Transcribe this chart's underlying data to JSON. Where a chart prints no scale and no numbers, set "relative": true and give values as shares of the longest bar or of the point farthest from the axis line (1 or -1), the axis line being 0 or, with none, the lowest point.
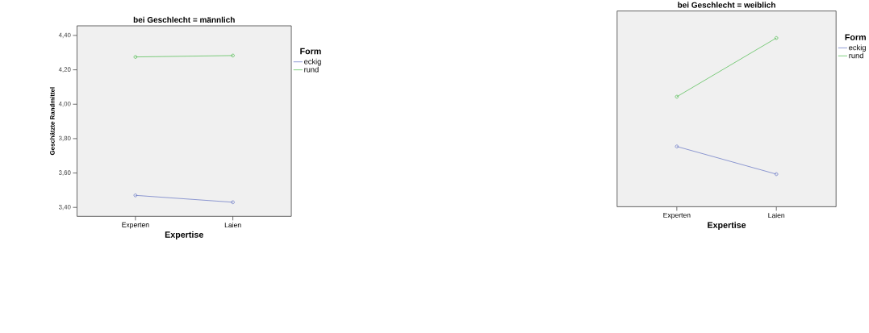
{
  "chart_data": [
    {
      "type": "line",
      "title": "bei Geschlecht = männlich",
      "xlabel": "Expertise",
      "ylabel": "Geschätzte Randmittel",
      "legend_title": "Form",
      "legend": "right",
      "marker": "circle",
      "line_style": "solid",
      "categories": [
        "Experten",
        "Laien"
      ],
      "series": [
        {
          "name": "eckig",
          "color": "#6474c4",
          "values": [
            3.47,
            3.43
          ]
        },
        {
          "name": "rund",
          "color": "#4cbc4c",
          "values": [
            4.275,
            4.283
          ]
        }
      ],
      "ylim": [
        3.348,
        4.456
      ],
      "yticks": [
        {
          "value": 3.4,
          "label": "3,40"
        },
        {
          "value": 3.6,
          "label": "3,60"
        },
        {
          "value": 3.8,
          "label": "3,80"
        },
        {
          "value": 4.0,
          "label": "4,00"
        },
        {
          "value": 4.2,
          "label": "4,20"
        },
        {
          "value": 4.4,
          "label": "4,40"
        }
      ]
    },
    {
      "type": "line",
      "title": "bei Geschlecht = weiblich",
      "xlabel": "Expertise",
      "legend_title": "Form",
      "legend": "right",
      "marker": "circle",
      "line_style": "solid",
      "relative": true,
      "categories": [
        "Experten",
        "Laien"
      ],
      "series": [
        {
          "name": "eckig",
          "color": "#6474c4",
          "values": [
            0.357,
            0.193
          ]
        },
        {
          "name": "rund",
          "color": "#4cbc4c",
          "values": [
            0.652,
            1
          ]
        }
      ]
    }
  ]
}
